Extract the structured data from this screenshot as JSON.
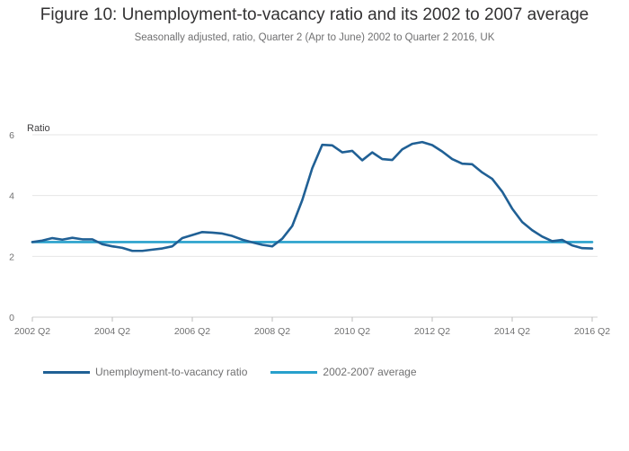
{
  "chart_data": {
    "type": "line",
    "title": "Figure 10: Unemployment-to-vacancy ratio and its 2002 to 2007 average",
    "subtitle": "Seasonally adjusted, ratio, Quarter 2 (Apr to June) 2002 to Quarter 2 2016, UK",
    "ylabel": "Ratio",
    "xlabel": "",
    "ylim": [
      0,
      6
    ],
    "yticks": [
      "0",
      "2",
      "4",
      "6"
    ],
    "xticks": [
      "2002 Q2",
      "2004 Q2",
      "2006 Q2",
      "2008 Q2",
      "2010 Q2",
      "2012 Q2",
      "2014 Q2",
      "2016 Q2"
    ],
    "grid": "horizontal",
    "legend_position": "bottom",
    "x": [
      "2002 Q2",
      "2002 Q3",
      "2002 Q4",
      "2003 Q1",
      "2003 Q2",
      "2003 Q3",
      "2003 Q4",
      "2004 Q1",
      "2004 Q2",
      "2004 Q3",
      "2004 Q4",
      "2005 Q1",
      "2005 Q2",
      "2005 Q3",
      "2005 Q4",
      "2006 Q1",
      "2006 Q2",
      "2006 Q3",
      "2006 Q4",
      "2007 Q1",
      "2007 Q2",
      "2007 Q3",
      "2007 Q4",
      "2008 Q1",
      "2008 Q2",
      "2008 Q3",
      "2008 Q4",
      "2009 Q1",
      "2009 Q2",
      "2009 Q3",
      "2009 Q4",
      "2010 Q1",
      "2010 Q2",
      "2010 Q3",
      "2010 Q4",
      "2011 Q1",
      "2011 Q2",
      "2011 Q3",
      "2011 Q4",
      "2012 Q1",
      "2012 Q2",
      "2012 Q3",
      "2012 Q4",
      "2013 Q1",
      "2013 Q2",
      "2013 Q3",
      "2013 Q4",
      "2014 Q1",
      "2014 Q2",
      "2014 Q3",
      "2014 Q4",
      "2015 Q1",
      "2015 Q2",
      "2015 Q3",
      "2015 Q4",
      "2016 Q1",
      "2016 Q2"
    ],
    "series": [
      {
        "name": "Unemployment-to-vacancy ratio",
        "color": "#206095",
        "values": [
          2.47,
          2.52,
          2.6,
          2.55,
          2.61,
          2.56,
          2.56,
          2.4,
          2.33,
          2.28,
          2.18,
          2.18,
          2.22,
          2.26,
          2.33,
          2.6,
          2.7,
          2.8,
          2.78,
          2.75,
          2.67,
          2.55,
          2.46,
          2.38,
          2.33,
          2.58,
          3.0,
          3.85,
          4.9,
          5.67,
          5.65,
          5.42,
          5.47,
          5.16,
          5.42,
          5.2,
          5.17,
          5.52,
          5.7,
          5.76,
          5.66,
          5.45,
          5.2,
          5.05,
          5.03,
          4.76,
          4.55,
          4.13,
          3.57,
          3.13,
          2.86,
          2.65,
          2.5,
          2.54,
          2.36,
          2.27,
          2.26
        ]
      },
      {
        "name": "2002-2007 average",
        "color": "#27a0cc",
        "values": [
          2.47,
          2.47,
          2.47,
          2.47,
          2.47,
          2.47,
          2.47,
          2.47,
          2.47,
          2.47,
          2.47,
          2.47,
          2.47,
          2.47,
          2.47,
          2.47,
          2.47,
          2.47,
          2.47,
          2.47,
          2.47,
          2.47,
          2.47,
          2.47,
          2.47,
          2.47,
          2.47,
          2.47,
          2.47,
          2.47,
          2.47,
          2.47,
          2.47,
          2.47,
          2.47,
          2.47,
          2.47,
          2.47,
          2.47,
          2.47,
          2.47,
          2.47,
          2.47,
          2.47,
          2.47,
          2.47,
          2.47,
          2.47,
          2.47,
          2.47,
          2.47,
          2.47,
          2.47,
          2.47,
          2.47,
          2.47,
          2.47
        ]
      }
    ]
  }
}
